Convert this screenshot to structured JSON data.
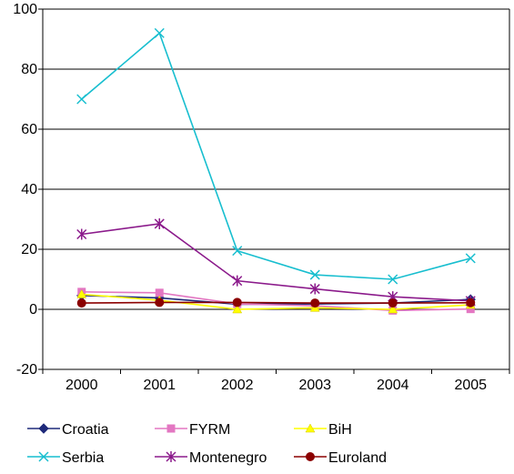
{
  "chart_data": {
    "type": "line",
    "categories": [
      "2000",
      "2001",
      "2002",
      "2003",
      "2004",
      "2005"
    ],
    "ylim": [
      -20,
      100
    ],
    "yticks": [
      -20,
      0,
      20,
      40,
      60,
      80,
      100
    ],
    "grid": true,
    "legend_position": "bottom",
    "series": [
      {
        "name": "Croatia",
        "color": "#1f2a7a",
        "marker": "diamond",
        "values": [
          4.6,
          3.8,
          1.7,
          1.8,
          2.1,
          3.3
        ]
      },
      {
        "name": "FYRM",
        "color": "#e377c2",
        "marker": "square",
        "values": [
          5.8,
          5.5,
          1.8,
          1.2,
          -0.4,
          0.1
        ]
      },
      {
        "name": "BiH",
        "color": "#ffff00",
        "marker": "triangle",
        "values": [
          5.0,
          3.0,
          0.0,
          0.5,
          0.0,
          1.5
        ]
      },
      {
        "name": "Serbia",
        "color": "#17becf",
        "marker": "x",
        "values": [
          70.0,
          92.0,
          19.5,
          11.5,
          10.0,
          17.0
        ]
      },
      {
        "name": "Montenegro",
        "color": "#8b1a8b",
        "marker": "star",
        "values": [
          25.0,
          28.5,
          9.5,
          6.8,
          4.2,
          2.8
        ]
      },
      {
        "name": "Euroland",
        "color": "#8b0000",
        "marker": "circle",
        "values": [
          2.1,
          2.3,
          2.3,
          2.1,
          2.1,
          2.2
        ]
      }
    ]
  }
}
